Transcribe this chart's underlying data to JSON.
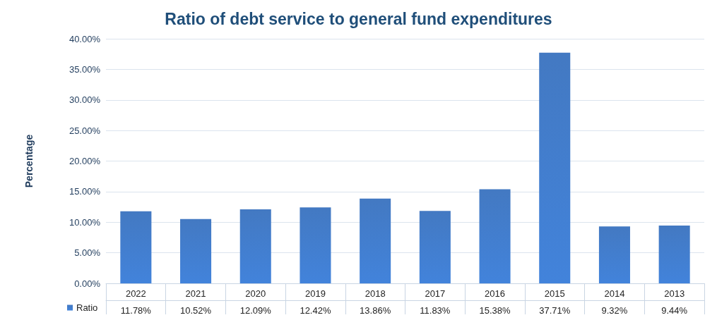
{
  "chart_data": {
    "type": "bar",
    "title": "Ratio of debt service to general fund expenditures",
    "ylabel": "Percentage",
    "categories": [
      "2022",
      "2021",
      "2020",
      "2019",
      "2018",
      "2017",
      "2016",
      "2015",
      "2014",
      "2013"
    ],
    "series": [
      {
        "name": "Ratio",
        "color": "#3a72bf",
        "values": [
          11.78,
          10.52,
          12.09,
          12.42,
          13.86,
          11.83,
          15.38,
          37.71,
          9.32,
          9.44
        ],
        "value_labels": [
          "11.78%",
          "10.52%",
          "12.09%",
          "12.42%",
          "13.86%",
          "11.83%",
          "15.38%",
          "37.71%",
          "9.32%",
          "9.44%"
        ]
      }
    ],
    "ylim": [
      0,
      40
    ],
    "yticks": [
      {
        "value": 0,
        "label": "0.00%"
      },
      {
        "value": 5,
        "label": "5.00%"
      },
      {
        "value": 10,
        "label": "10.00%"
      },
      {
        "value": 15,
        "label": "15.00%"
      },
      {
        "value": 20,
        "label": "20.00%"
      },
      {
        "value": 25,
        "label": "25.00%"
      },
      {
        "value": 30,
        "label": "30.00%"
      },
      {
        "value": 35,
        "label": "35.00%"
      },
      {
        "value": 40,
        "label": "40.00%"
      }
    ],
    "grid": "y",
    "legend": "bottom left"
  }
}
